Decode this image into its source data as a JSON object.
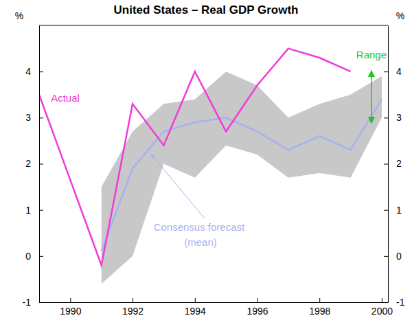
{
  "chart_data": {
    "type": "line",
    "title": "United States – Real GDP Growth",
    "ylabel": "%",
    "y2label": "%",
    "xlim": [
      1989,
      2000.2
    ],
    "xticks": [
      1990,
      1992,
      1994,
      1996,
      1998,
      2000
    ],
    "ylim": [
      -1,
      5
    ],
    "yticks": [
      -1,
      0,
      1,
      2,
      3,
      4
    ],
    "y2lim": [
      -1,
      5
    ],
    "y2ticks": [
      -1,
      0,
      1,
      2,
      3,
      4
    ],
    "grid": false,
    "series": [
      {
        "name": "Range",
        "type": "area",
        "color": "#c8c8c8",
        "x": [
          1991,
          1992,
          1993,
          1994,
          1995,
          1996,
          1997,
          1998,
          1999,
          2000
        ],
        "low": [
          -0.6,
          0.0,
          2.0,
          1.7,
          2.4,
          2.2,
          1.7,
          1.8,
          1.7,
          3.0
        ],
        "high": [
          1.5,
          2.7,
          3.3,
          3.4,
          4.0,
          3.7,
          3.0,
          3.3,
          3.5,
          3.9
        ]
      },
      {
        "name": "Consensus forecast (mean)",
        "type": "line",
        "color": "#a7b1f0",
        "x": [
          1991,
          1992,
          1993,
          1994,
          1995,
          1996,
          1997,
          1998,
          1999,
          2000
        ],
        "values": [
          0.1,
          1.9,
          2.7,
          2.9,
          3.0,
          2.7,
          2.3,
          2.6,
          2.3,
          3.4
        ]
      },
      {
        "name": "Actual",
        "type": "line",
        "color": "#f03cd8",
        "x": [
          1989,
          1991,
          1992,
          1993,
          1994,
          1995,
          1996,
          1997,
          1998,
          1999
        ],
        "values": [
          3.5,
          -0.2,
          3.3,
          2.4,
          4.0,
          2.7,
          3.7,
          4.5,
          4.3,
          4.0
        ]
      }
    ]
  }
}
